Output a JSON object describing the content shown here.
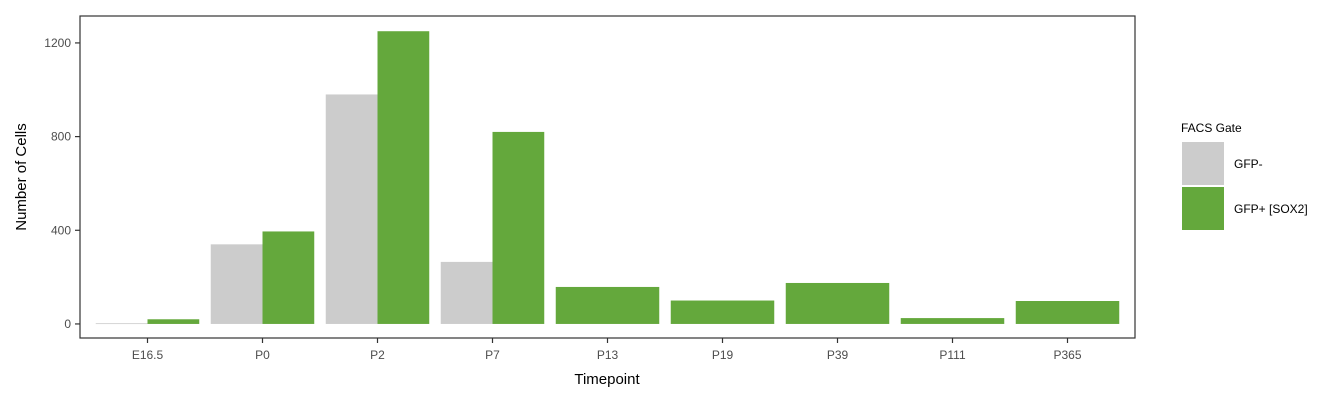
{
  "chart_data": {
    "type": "bar",
    "categories": [
      "E16.5",
      "P0",
      "P2",
      "P7",
      "P13",
      "P19",
      "P39",
      "P111",
      "P365"
    ],
    "series": [
      {
        "name": "GFP-",
        "color": "#cccccc",
        "values": [
          3,
          340,
          980,
          265,
          null,
          null,
          null,
          null,
          null
        ]
      },
      {
        "name": "GFP+ [SOX2]",
        "color": "#64a83c",
        "values": [
          20,
          395,
          1250,
          820,
          158,
          100,
          175,
          25,
          98
        ]
      }
    ],
    "xlabel": "Timepoint",
    "ylabel": "Number of Cells",
    "ylim": [
      -60,
      1315
    ],
    "yticks": [
      0,
      400,
      800,
      1200
    ],
    "legend": {
      "title": "FACS Gate",
      "position": "right"
    },
    "grid": false
  }
}
